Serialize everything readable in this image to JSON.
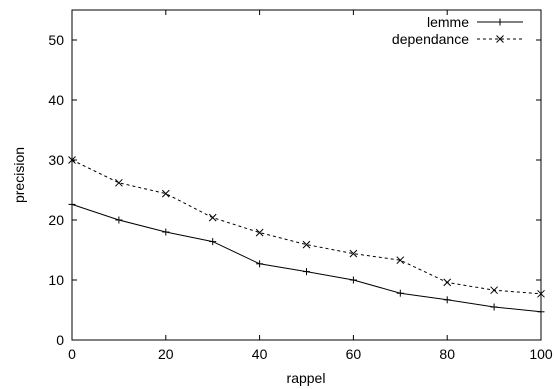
{
  "chart_data": {
    "type": "line",
    "xlabel": "rappel",
    "ylabel": "precision",
    "xlim": [
      0,
      100
    ],
    "ylim": [
      0,
      55
    ],
    "xticks": [
      0,
      20,
      40,
      60,
      80,
      100
    ],
    "yticks": [
      0,
      10,
      20,
      30,
      40,
      50
    ],
    "legend_position": "top-right",
    "grid": false,
    "series": [
      {
        "name": "lemme",
        "marker": "+",
        "line_style": "solid",
        "x": [
          0,
          10,
          20,
          30,
          40,
          50,
          60,
          70,
          80,
          90,
          100
        ],
        "values": [
          22.6,
          20.0,
          18.0,
          16.4,
          12.7,
          11.4,
          10.0,
          7.8,
          6.7,
          5.5,
          4.7
        ]
      },
      {
        "name": "dependance",
        "marker": "x",
        "line_style": "dashed",
        "x": [
          0,
          10,
          20,
          30,
          40,
          50,
          60,
          70,
          80,
          90,
          100
        ],
        "values": [
          30.0,
          26.2,
          24.4,
          20.4,
          17.9,
          15.9,
          14.4,
          13.3,
          9.6,
          8.3,
          7.7
        ]
      }
    ]
  }
}
